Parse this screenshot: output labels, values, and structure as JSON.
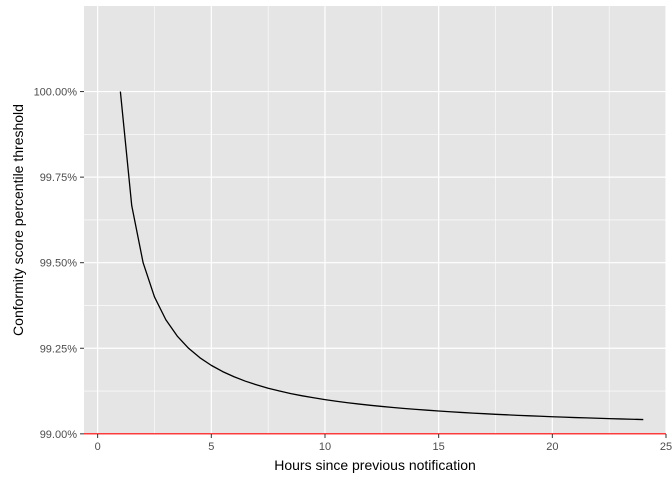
{
  "chart_data": {
    "type": "line",
    "title": "",
    "xlabel": "Hours since previous notification",
    "ylabel": "Conformity score percentile threshold",
    "xlim": [
      -0.6,
      25
    ],
    "ylim": [
      0.989995,
      1.0025
    ],
    "x_ticks": [
      0,
      5,
      10,
      15,
      20,
      25
    ],
    "x_tick_labels": [
      "0",
      "5",
      "10",
      "15",
      "20",
      "25"
    ],
    "y_ticks": [
      0.99,
      0.9925,
      0.995,
      0.9975,
      1.0
    ],
    "y_tick_labels": [
      "99.00%",
      "99.25%",
      "99.50%",
      "99.75%",
      "100.00%"
    ],
    "grid": true,
    "legend": "none",
    "panel_background": "#e5e5e5",
    "grid_color": "#ffffff",
    "series": [
      {
        "color": "#000000",
        "formula": "0.99 + 0.01 / x",
        "x": [
          1,
          1.5,
          2,
          2.5,
          3,
          3.5,
          4,
          4.5,
          5,
          5.5,
          6,
          6.5,
          7,
          7.5,
          8,
          8.5,
          9,
          9.5,
          10,
          10.5,
          11,
          11.5,
          12,
          12.5,
          13,
          13.5,
          14,
          14.5,
          15,
          15.5,
          16,
          16.5,
          17,
          17.5,
          18,
          18.5,
          19,
          19.5,
          20,
          20.5,
          21,
          21.5,
          22,
          22.5,
          23,
          23.5,
          24
        ],
        "values": [
          1.0,
          0.996667,
          0.995,
          0.994,
          0.993333,
          0.992857,
          0.9925,
          0.992222,
          0.992,
          0.991818,
          0.991667,
          0.991538,
          0.991429,
          0.991333,
          0.99125,
          0.991176,
          0.991111,
          0.991053,
          0.991,
          0.990952,
          0.990909,
          0.99087,
          0.990833,
          0.9908,
          0.990769,
          0.990741,
          0.990714,
          0.99069,
          0.990667,
          0.990645,
          0.990625,
          0.990606,
          0.990588,
          0.990571,
          0.990556,
          0.99054,
          0.990526,
          0.990513,
          0.9905,
          0.990488,
          0.990476,
          0.990465,
          0.990455,
          0.990444,
          0.990435,
          0.990426,
          0.990417
        ]
      }
    ],
    "reference_line": {
      "axis": "y",
      "value": 0.99,
      "color": "#ff0000"
    }
  }
}
